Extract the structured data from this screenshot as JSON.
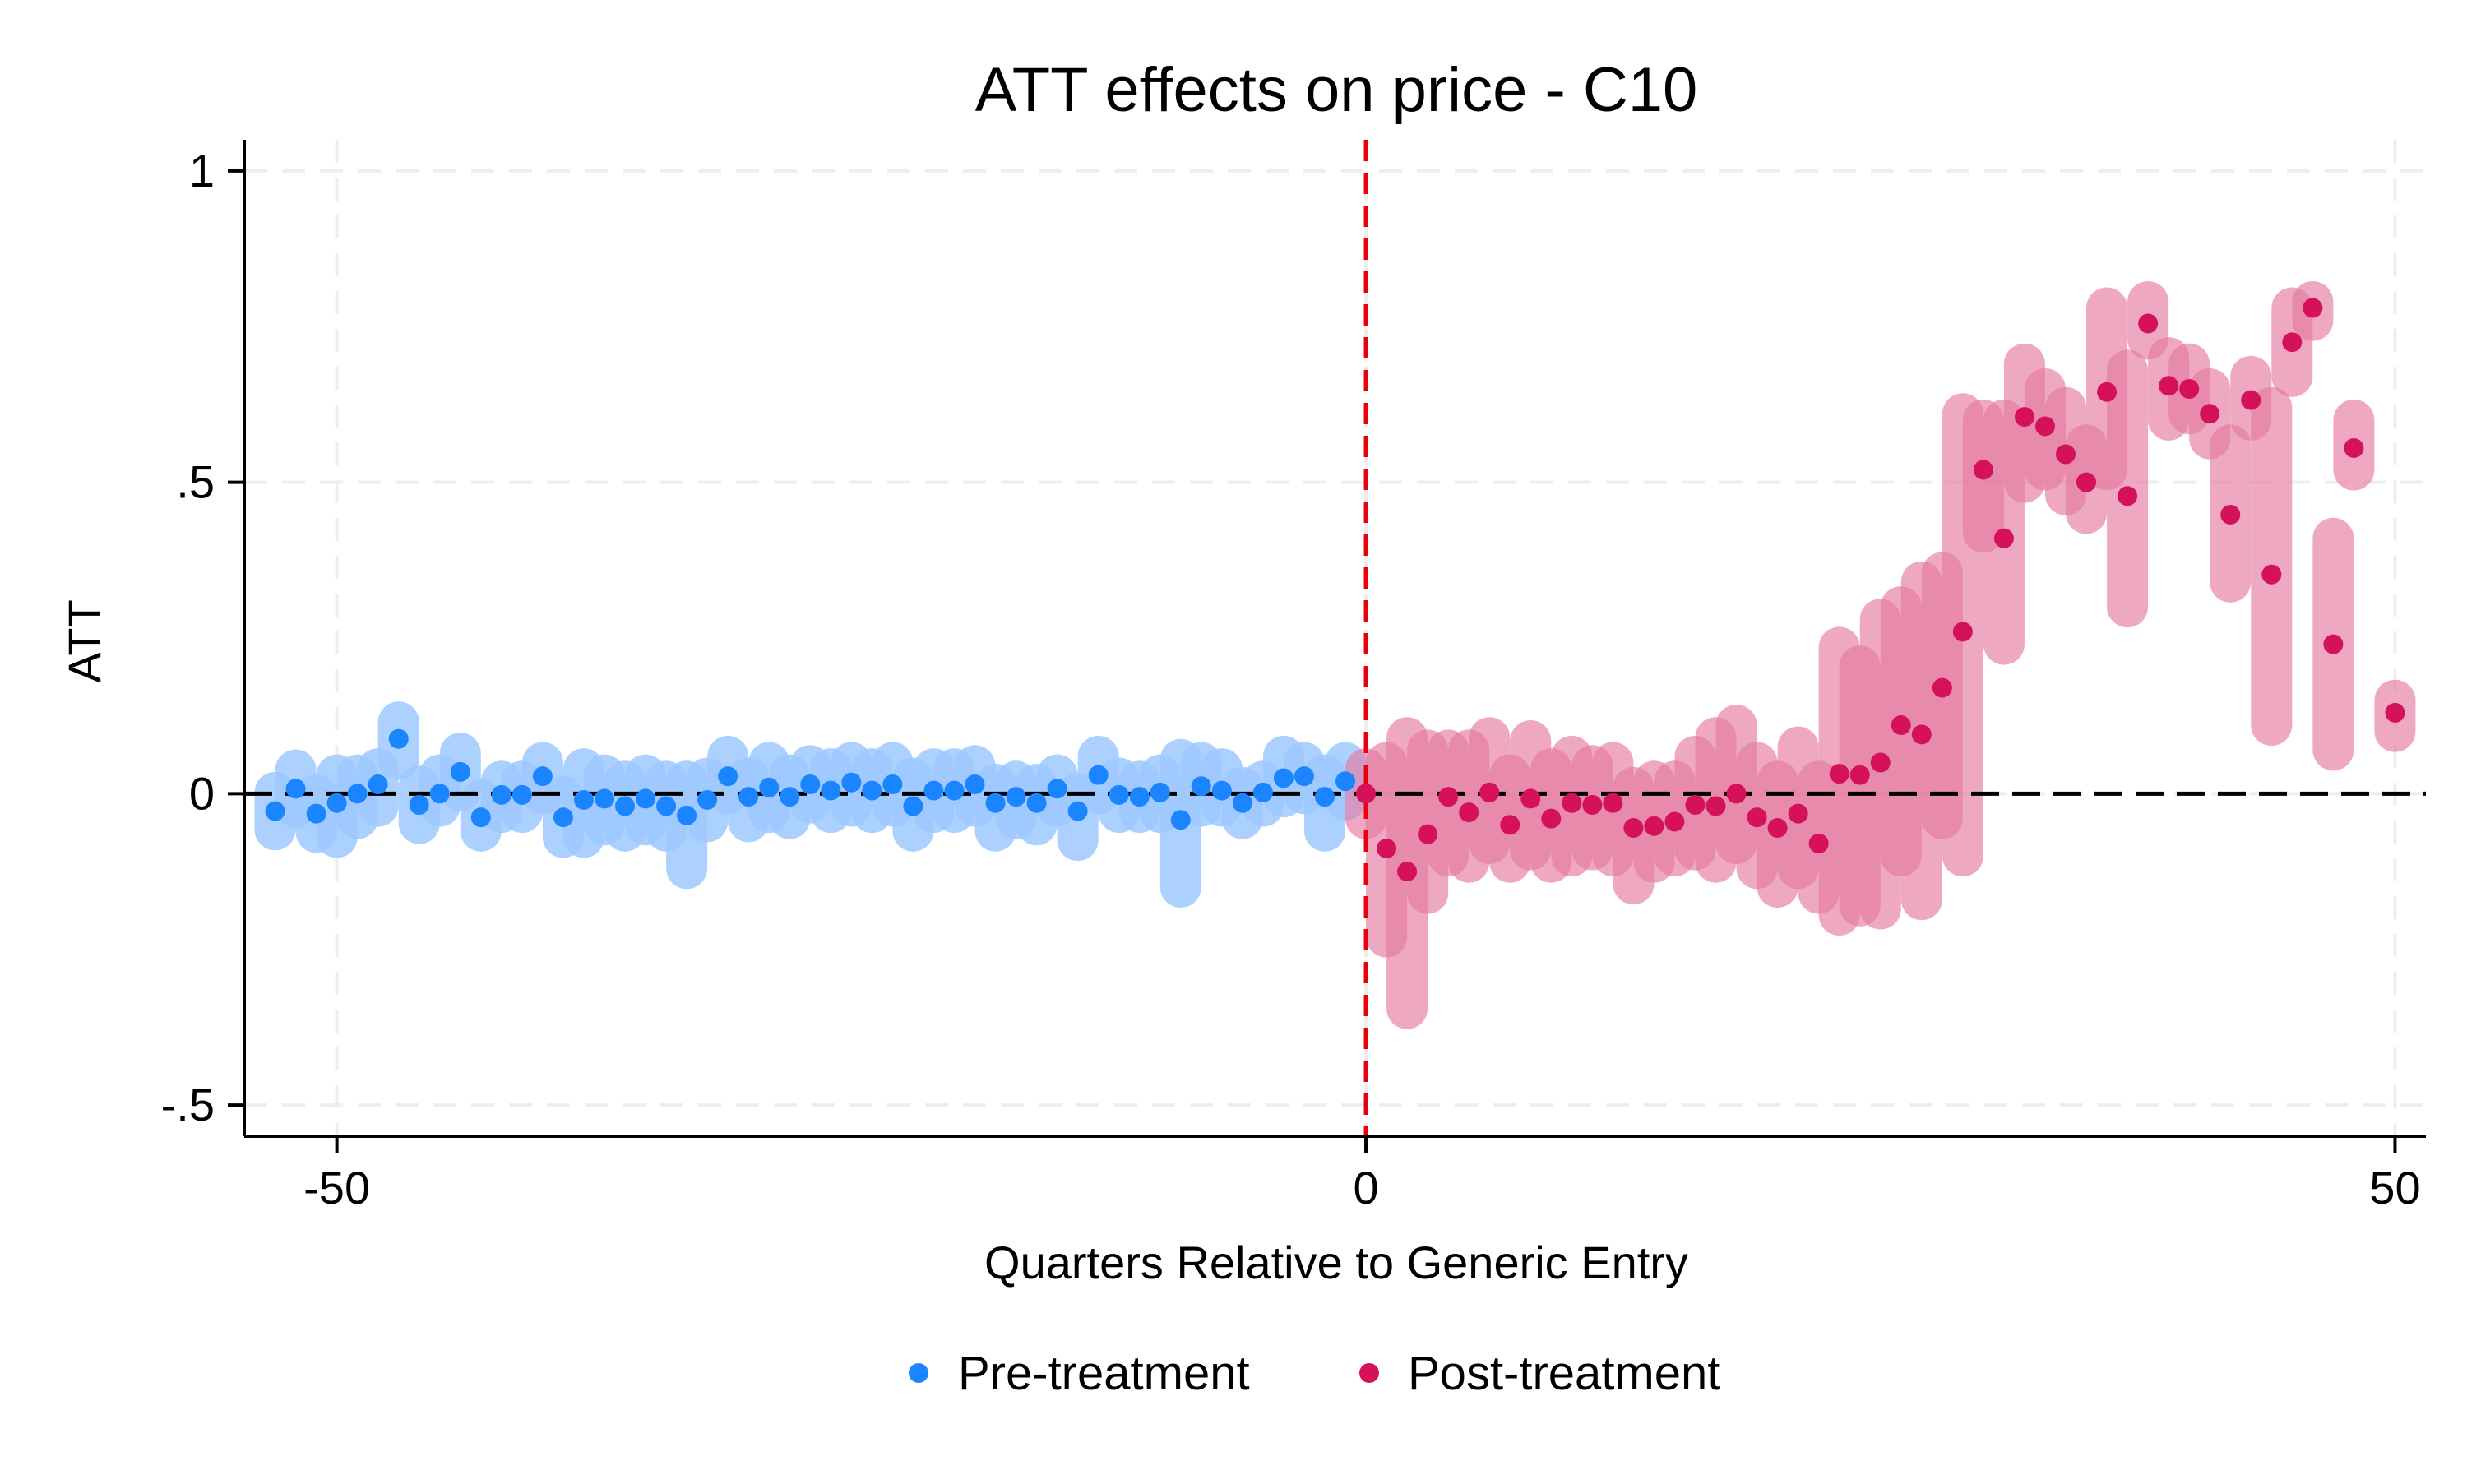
{
  "chart_data": {
    "type": "scatter",
    "title": "ATT effects on price - C10",
    "xlabel": "Quarters Relative to Generic Entry",
    "ylabel": "ATT",
    "xlim": [
      -54.5,
      51.5
    ],
    "ylim": [
      -0.55,
      1.05
    ],
    "x_ticks": [
      -50,
      0,
      50
    ],
    "x_tick_labels": [
      "-50",
      "0",
      "50"
    ],
    "y_ticks": [
      -0.5,
      0,
      0.5,
      1
    ],
    "y_tick_labels": [
      "-.5",
      "0",
      ".5",
      "1"
    ],
    "grid": true,
    "reference_lines": {
      "horizontal_y": 0,
      "vertical_x": 0
    },
    "legend": {
      "position": "bottom",
      "entries": [
        "Pre-treatment",
        "Post-treatment"
      ]
    },
    "colors": {
      "pre_point": "#1a85ff",
      "pre_ci": "#9dc9ff",
      "post_point": "#d41159",
      "post_ci": "#e57aa0",
      "vline": "#e8000b",
      "zero_line": "#000000",
      "grid": "#eeeeee"
    },
    "series": [
      {
        "name": "Pre-treatment",
        "points": [
          {
            "x": -53,
            "y": -0.028,
            "lo": -0.058,
            "hi": 0.002
          },
          {
            "x": -52,
            "y": 0.008,
            "lo": -0.022,
            "hi": 0.038
          },
          {
            "x": -51,
            "y": -0.032,
            "lo": -0.062,
            "hi": -0.002
          },
          {
            "x": -50,
            "y": -0.015,
            "lo": -0.07,
            "hi": 0.03
          },
          {
            "x": -49,
            "y": 0.0,
            "lo": -0.04,
            "hi": 0.03
          },
          {
            "x": -48,
            "y": 0.015,
            "lo": -0.02,
            "hi": 0.04
          },
          {
            "x": -47,
            "y": 0.088,
            "lo": 0.055,
            "hi": 0.115
          },
          {
            "x": -46,
            "y": -0.018,
            "lo": -0.048,
            "hi": 0.012
          },
          {
            "x": -45,
            "y": 0.0,
            "lo": -0.02,
            "hi": 0.03
          },
          {
            "x": -44,
            "y": 0.035,
            "lo": 0.005,
            "hi": 0.065
          },
          {
            "x": -43,
            "y": -0.038,
            "lo": -0.06,
            "hi": -0.01
          },
          {
            "x": -42,
            "y": -0.002,
            "lo": -0.03,
            "hi": 0.02
          },
          {
            "x": -41,
            "y": -0.002,
            "lo": -0.03,
            "hi": 0.02
          },
          {
            "x": -40,
            "y": 0.028,
            "lo": 0.0,
            "hi": 0.05
          },
          {
            "x": -39,
            "y": -0.038,
            "lo": -0.07,
            "hi": -0.005
          },
          {
            "x": -38,
            "y": -0.01,
            "lo": -0.07,
            "hi": 0.04
          },
          {
            "x": -37,
            "y": -0.008,
            "lo": -0.05,
            "hi": 0.03
          },
          {
            "x": -36,
            "y": -0.02,
            "lo": -0.06,
            "hi": 0.02
          },
          {
            "x": -35,
            "y": -0.008,
            "lo": -0.05,
            "hi": 0.03
          },
          {
            "x": -34,
            "y": -0.02,
            "lo": -0.06,
            "hi": 0.02
          },
          {
            "x": -33,
            "y": -0.035,
            "lo": -0.12,
            "hi": 0.02
          },
          {
            "x": -32,
            "y": -0.01,
            "lo": -0.045,
            "hi": 0.025
          },
          {
            "x": -31,
            "y": 0.028,
            "lo": 0.0,
            "hi": 0.06
          },
          {
            "x": -30,
            "y": -0.005,
            "lo": -0.045,
            "hi": 0.025
          },
          {
            "x": -29,
            "y": 0.01,
            "lo": -0.03,
            "hi": 0.05
          },
          {
            "x": -28,
            "y": -0.005,
            "lo": -0.04,
            "hi": 0.03
          },
          {
            "x": -27,
            "y": 0.015,
            "lo": -0.015,
            "hi": 0.045
          },
          {
            "x": -26,
            "y": 0.005,
            "lo": -0.03,
            "hi": 0.04
          },
          {
            "x": -25,
            "y": 0.018,
            "lo": -0.02,
            "hi": 0.05
          },
          {
            "x": -24,
            "y": 0.005,
            "lo": -0.03,
            "hi": 0.04
          },
          {
            "x": -23,
            "y": 0.015,
            "lo": -0.02,
            "hi": 0.05
          },
          {
            "x": -22,
            "y": -0.02,
            "lo": -0.06,
            "hi": 0.025
          },
          {
            "x": -21,
            "y": 0.005,
            "lo": -0.03,
            "hi": 0.04
          },
          {
            "x": -20,
            "y": 0.005,
            "lo": -0.03,
            "hi": 0.04
          },
          {
            "x": -19,
            "y": 0.015,
            "lo": -0.02,
            "hi": 0.045
          },
          {
            "x": -18,
            "y": -0.015,
            "lo": -0.06,
            "hi": 0.015
          },
          {
            "x": -17,
            "y": -0.005,
            "lo": -0.04,
            "hi": 0.02
          },
          {
            "x": -16,
            "y": -0.015,
            "lo": -0.05,
            "hi": 0.015
          },
          {
            "x": -15,
            "y": 0.008,
            "lo": -0.02,
            "hi": 0.03
          },
          {
            "x": -14,
            "y": -0.028,
            "lo": -0.075,
            "hi": 0.0
          },
          {
            "x": -13,
            "y": 0.03,
            "lo": 0.0,
            "hi": 0.06
          },
          {
            "x": -12,
            "y": -0.002,
            "lo": -0.03,
            "hi": 0.025
          },
          {
            "x": -11,
            "y": -0.005,
            "lo": -0.03,
            "hi": 0.02
          },
          {
            "x": -10,
            "y": 0.002,
            "lo": -0.03,
            "hi": 0.03
          },
          {
            "x": -9,
            "y": -0.042,
            "lo": -0.15,
            "hi": 0.055
          },
          {
            "x": -8,
            "y": 0.012,
            "lo": -0.02,
            "hi": 0.05
          },
          {
            "x": -7,
            "y": 0.005,
            "lo": -0.02,
            "hi": 0.04
          },
          {
            "x": -6,
            "y": -0.015,
            "lo": -0.04,
            "hi": 0.01
          },
          {
            "x": -5,
            "y": 0.002,
            "lo": -0.02,
            "hi": 0.02
          },
          {
            "x": -4,
            "y": 0.025,
            "lo": -0.005,
            "hi": 0.06
          },
          {
            "x": -3,
            "y": 0.028,
            "lo": 0.0,
            "hi": 0.05
          },
          {
            "x": -2,
            "y": -0.005,
            "lo": -0.06,
            "hi": 0.03
          },
          {
            "x": -1,
            "y": 0.02,
            "lo": -0.01,
            "hi": 0.05
          }
        ]
      },
      {
        "name": "Post-treatment",
        "points": [
          {
            "x": 0,
            "y": 0.0,
            "lo": -0.04,
            "hi": 0.04
          },
          {
            "x": 1,
            "y": -0.088,
            "lo": -0.23,
            "hi": 0.05
          },
          {
            "x": 2,
            "y": -0.125,
            "lo": -0.345,
            "hi": 0.09
          },
          {
            "x": 3,
            "y": -0.065,
            "lo": -0.16,
            "hi": 0.07
          },
          {
            "x": 4,
            "y": -0.005,
            "lo": -0.1,
            "hi": 0.07
          },
          {
            "x": 5,
            "y": -0.03,
            "lo": -0.11,
            "hi": 0.07
          },
          {
            "x": 6,
            "y": 0.002,
            "lo": -0.08,
            "hi": 0.09
          },
          {
            "x": 7,
            "y": -0.05,
            "lo": -0.11,
            "hi": 0.03
          },
          {
            "x": 8,
            "y": -0.008,
            "lo": -0.09,
            "hi": 0.085
          },
          {
            "x": 9,
            "y": -0.04,
            "lo": -0.11,
            "hi": 0.04
          },
          {
            "x": 10,
            "y": -0.015,
            "lo": -0.1,
            "hi": 0.06
          },
          {
            "x": 11,
            "y": -0.018,
            "lo": -0.09,
            "hi": 0.045
          },
          {
            "x": 12,
            "y": -0.015,
            "lo": -0.1,
            "hi": 0.05
          },
          {
            "x": 13,
            "y": -0.055,
            "lo": -0.145,
            "hi": 0.01
          },
          {
            "x": 14,
            "y": -0.052,
            "lo": -0.11,
            "hi": 0.02
          },
          {
            "x": 15,
            "y": -0.045,
            "lo": -0.1,
            "hi": 0.02
          },
          {
            "x": 16,
            "y": -0.018,
            "lo": -0.09,
            "hi": 0.06
          },
          {
            "x": 17,
            "y": -0.02,
            "lo": -0.11,
            "hi": 0.09
          },
          {
            "x": 18,
            "y": 0.0,
            "lo": -0.08,
            "hi": 0.11
          },
          {
            "x": 19,
            "y": -0.038,
            "lo": -0.12,
            "hi": 0.05
          },
          {
            "x": 20,
            "y": -0.055,
            "lo": -0.15,
            "hi": 0.02
          },
          {
            "x": 21,
            "y": -0.032,
            "lo": -0.12,
            "hi": 0.075
          },
          {
            "x": 22,
            "y": -0.08,
            "lo": -0.16,
            "hi": 0.02
          },
          {
            "x": 23,
            "y": 0.032,
            "lo": -0.195,
            "hi": 0.235
          },
          {
            "x": 24,
            "y": 0.03,
            "lo": -0.18,
            "hi": 0.205
          },
          {
            "x": 25,
            "y": 0.05,
            "lo": -0.185,
            "hi": 0.28
          },
          {
            "x": 26,
            "y": 0.11,
            "lo": -0.1,
            "hi": 0.3
          },
          {
            "x": 27,
            "y": 0.095,
            "lo": -0.17,
            "hi": 0.34
          },
          {
            "x": 28,
            "y": 0.17,
            "lo": -0.04,
            "hi": 0.355
          },
          {
            "x": 29,
            "y": 0.26,
            "lo": -0.1,
            "hi": 0.61
          },
          {
            "x": 30,
            "y": 0.52,
            "lo": 0.42,
            "hi": 0.6
          },
          {
            "x": 31,
            "y": 0.41,
            "lo": 0.24,
            "hi": 0.6
          },
          {
            "x": 32,
            "y": 0.605,
            "lo": 0.5,
            "hi": 0.69
          },
          {
            "x": 33,
            "y": 0.59,
            "lo": 0.52,
            "hi": 0.65
          },
          {
            "x": 34,
            "y": 0.545,
            "lo": 0.48,
            "hi": 0.62
          },
          {
            "x": 35,
            "y": 0.5,
            "lo": 0.45,
            "hi": 0.56
          },
          {
            "x": 36,
            "y": 0.645,
            "lo": 0.52,
            "hi": 0.78
          },
          {
            "x": 37,
            "y": 0.478,
            "lo": 0.3,
            "hi": 0.68
          },
          {
            "x": 38,
            "y": 0.755,
            "lo": 0.73,
            "hi": 0.79
          },
          {
            "x": 39,
            "y": 0.655,
            "lo": 0.6,
            "hi": 0.7
          },
          {
            "x": 40,
            "y": 0.65,
            "lo": 0.61,
            "hi": 0.69
          },
          {
            "x": 41,
            "y": 0.61,
            "lo": 0.57,
            "hi": 0.65
          },
          {
            "x": 42,
            "y": 0.448,
            "lo": 0.34,
            "hi": 0.56
          },
          {
            "x": 43,
            "y": 0.632,
            "lo": 0.6,
            "hi": 0.67
          },
          {
            "x": 44,
            "y": 0.352,
            "lo": 0.11,
            "hi": 0.62
          },
          {
            "x": 45,
            "y": 0.725,
            "lo": 0.67,
            "hi": 0.78
          },
          {
            "x": 46,
            "y": 0.78,
            "lo": 0.76,
            "hi": 0.79
          },
          {
            "x": 47,
            "y": 0.24,
            "lo": 0.07,
            "hi": 0.41
          },
          {
            "x": 48,
            "y": 0.555,
            "lo": 0.52,
            "hi": 0.6
          },
          {
            "x": 50,
            "y": 0.13,
            "lo": 0.1,
            "hi": 0.15
          }
        ]
      }
    ]
  }
}
